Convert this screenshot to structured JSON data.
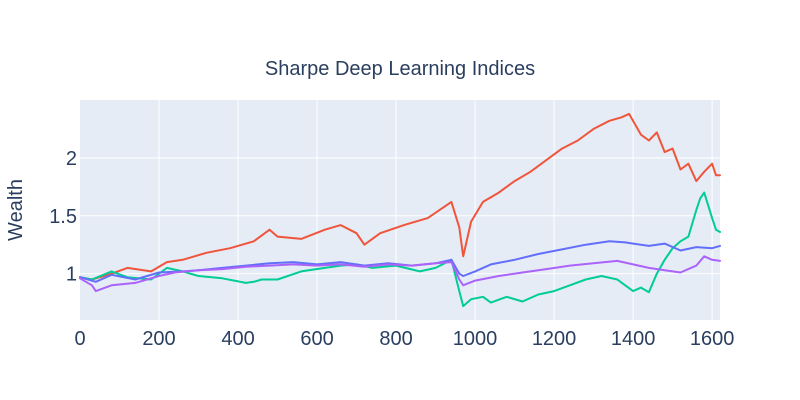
{
  "chart_data": {
    "type": "line",
    "title": "Sharpe Deep Learning Indices",
    "xlabel": "",
    "ylabel": "Wealth",
    "xlim": [
      0,
      1620
    ],
    "ylim": [
      0.6,
      2.5
    ],
    "xticks": [
      0,
      200,
      400,
      600,
      800,
      1000,
      1200,
      1400,
      1600
    ],
    "yticks": [
      1,
      1.5,
      2
    ],
    "ytick_labels": [
      "1",
      "1.5",
      "2"
    ],
    "grid": true,
    "legend": "none",
    "colors": [
      "#EF553B",
      "#00CC96",
      "#636EFA",
      "#AB63FA"
    ],
    "series": [
      {
        "x": [
          0,
          30,
          80,
          120,
          180,
          220,
          260,
          320,
          380,
          440,
          480,
          500,
          560,
          620,
          660,
          700,
          720,
          760,
          820,
          880,
          940,
          960,
          970,
          990,
          1020,
          1060,
          1080,
          1100,
          1140,
          1180,
          1220,
          1260,
          1300,
          1340,
          1370,
          1390,
          1420,
          1440,
          1460,
          1480,
          1500,
          1520,
          1540,
          1560,
          1580,
          1600,
          1610,
          1620
        ],
        "y": [
          0.97,
          0.95,
          1.0,
          1.05,
          1.02,
          1.1,
          1.12,
          1.18,
          1.22,
          1.28,
          1.38,
          1.32,
          1.3,
          1.38,
          1.42,
          1.35,
          1.25,
          1.35,
          1.42,
          1.48,
          1.62,
          1.4,
          1.15,
          1.45,
          1.62,
          1.7,
          1.75,
          1.8,
          1.88,
          1.98,
          2.08,
          2.15,
          2.25,
          2.32,
          2.35,
          2.38,
          2.2,
          2.15,
          2.22,
          2.05,
          2.08,
          1.9,
          1.95,
          1.8,
          1.88,
          1.95,
          1.85,
          1.85
        ]
      },
      {
        "x": [
          0,
          30,
          80,
          120,
          180,
          220,
          260,
          300,
          360,
          420,
          440,
          460,
          500,
          560,
          620,
          660,
          700,
          740,
          800,
          860,
          900,
          940,
          960,
          970,
          990,
          1020,
          1040,
          1080,
          1120,
          1160,
          1200,
          1240,
          1280,
          1320,
          1360,
          1380,
          1400,
          1420,
          1440,
          1460,
          1480,
          1500,
          1520,
          1540,
          1560,
          1570,
          1580,
          1600,
          1610,
          1620
        ],
        "y": [
          0.97,
          0.95,
          1.02,
          0.97,
          0.95,
          1.05,
          1.02,
          0.98,
          0.96,
          0.92,
          0.93,
          0.95,
          0.95,
          1.02,
          1.05,
          1.07,
          1.08,
          1.05,
          1.07,
          1.02,
          1.05,
          1.12,
          0.85,
          0.72,
          0.78,
          0.8,
          0.75,
          0.8,
          0.76,
          0.82,
          0.85,
          0.9,
          0.95,
          0.98,
          0.95,
          0.9,
          0.85,
          0.88,
          0.84,
          1.0,
          1.12,
          1.22,
          1.28,
          1.32,
          1.55,
          1.65,
          1.7,
          1.48,
          1.38,
          1.36
        ]
      },
      {
        "x": [
          0,
          40,
          80,
          140,
          200,
          260,
          300,
          360,
          420,
          480,
          540,
          600,
          660,
          720,
          780,
          840,
          900,
          940,
          960,
          970,
          1000,
          1040,
          1100,
          1160,
          1220,
          1280,
          1340,
          1380,
          1400,
          1440,
          1480,
          1520,
          1560,
          1600,
          1620
        ],
        "y": [
          0.97,
          0.93,
          0.99,
          0.95,
          1.01,
          1.02,
          1.03,
          1.05,
          1.07,
          1.09,
          1.1,
          1.08,
          1.1,
          1.07,
          1.09,
          1.07,
          1.09,
          1.12,
          1.0,
          0.98,
          1.02,
          1.08,
          1.12,
          1.17,
          1.21,
          1.25,
          1.28,
          1.27,
          1.26,
          1.24,
          1.26,
          1.2,
          1.23,
          1.22,
          1.24
        ]
      },
      {
        "x": [
          0,
          30,
          40,
          80,
          140,
          200,
          240,
          300,
          360,
          420,
          480,
          540,
          600,
          660,
          720,
          780,
          840,
          900,
          940,
          960,
          970,
          1000,
          1060,
          1120,
          1180,
          1240,
          1300,
          1360,
          1400,
          1440,
          1480,
          1520,
          1560,
          1580,
          1600,
          1620
        ],
        "y": [
          0.96,
          0.9,
          0.85,
          0.9,
          0.92,
          0.98,
          1.01,
          1.03,
          1.04,
          1.06,
          1.07,
          1.08,
          1.07,
          1.08,
          1.06,
          1.08,
          1.07,
          1.09,
          1.1,
          0.95,
          0.9,
          0.94,
          0.98,
          1.01,
          1.04,
          1.07,
          1.09,
          1.11,
          1.08,
          1.05,
          1.03,
          1.01,
          1.07,
          1.15,
          1.12,
          1.11
        ]
      }
    ]
  }
}
